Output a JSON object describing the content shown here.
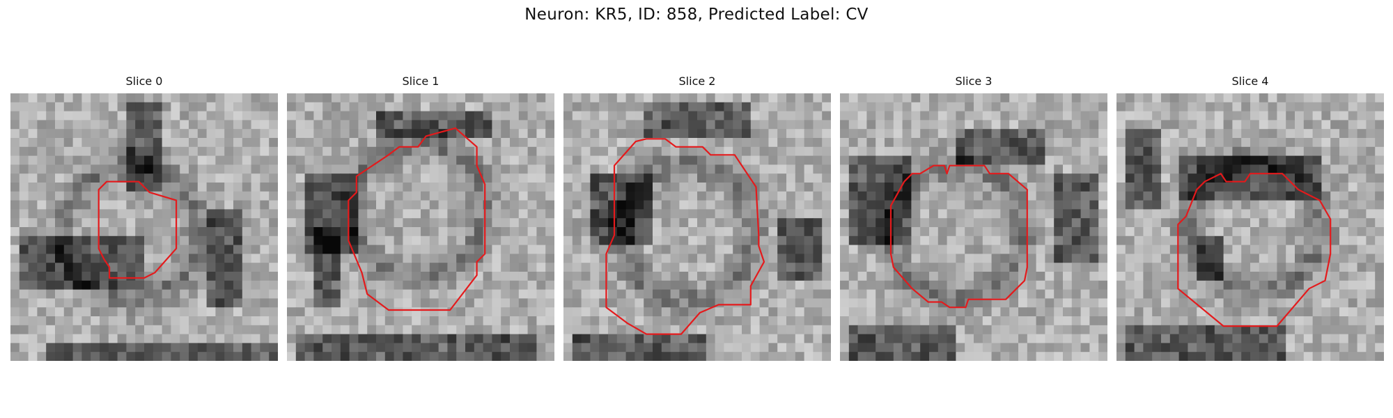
{
  "figure": {
    "title": "Neuron: KR5, ID: 858, Predicted Label: CV",
    "contour_color": "#e41a1c",
    "colormap": "gray",
    "slices": [
      {
        "label": "Slice 0",
        "seed": 101,
        "dark": [
          [
            0.05,
            0.55,
            0.45,
            0.18
          ],
          [
            0.45,
            0.05,
            0.12,
            0.3
          ],
          [
            0.15,
            0.92,
            0.85,
            0.08
          ],
          [
            0.75,
            0.45,
            0.12,
            0.35
          ]
        ],
        "contour": [
          [
            0.33,
            0.36
          ],
          [
            0.36,
            0.33
          ],
          [
            0.48,
            0.33
          ],
          [
            0.52,
            0.37
          ],
          [
            0.62,
            0.4
          ],
          [
            0.62,
            0.58
          ],
          [
            0.54,
            0.67
          ],
          [
            0.5,
            0.69
          ],
          [
            0.37,
            0.69
          ],
          [
            0.37,
            0.65
          ],
          [
            0.35,
            0.62
          ],
          [
            0.33,
            0.58
          ]
        ]
      },
      {
        "label": "Slice 1",
        "seed": 202,
        "dark": [
          [
            0.08,
            0.3,
            0.18,
            0.3
          ],
          [
            0.1,
            0.5,
            0.1,
            0.3
          ],
          [
            0.02,
            0.9,
            0.9,
            0.1
          ],
          [
            0.35,
            0.08,
            0.4,
            0.1
          ]
        ],
        "contour": [
          [
            0.38,
            0.23
          ],
          [
            0.42,
            0.2
          ],
          [
            0.49,
            0.2
          ],
          [
            0.52,
            0.16
          ],
          [
            0.63,
            0.13
          ],
          [
            0.71,
            0.2
          ],
          [
            0.71,
            0.27
          ],
          [
            0.74,
            0.34
          ],
          [
            0.74,
            0.6
          ],
          [
            0.71,
            0.63
          ],
          [
            0.71,
            0.68
          ],
          [
            0.61,
            0.81
          ],
          [
            0.38,
            0.81
          ],
          [
            0.3,
            0.75
          ],
          [
            0.28,
            0.67
          ],
          [
            0.23,
            0.55
          ],
          [
            0.23,
            0.4
          ],
          [
            0.26,
            0.37
          ],
          [
            0.26,
            0.31
          ]
        ]
      },
      {
        "label": "Slice 2",
        "seed": 303,
        "dark": [
          [
            0.1,
            0.3,
            0.22,
            0.25
          ],
          [
            0.8,
            0.48,
            0.18,
            0.22
          ],
          [
            0.02,
            0.9,
            0.5,
            0.1
          ],
          [
            0.3,
            0.05,
            0.4,
            0.1
          ]
        ],
        "contour": [
          [
            0.19,
            0.27
          ],
          [
            0.27,
            0.18
          ],
          [
            0.31,
            0.17
          ],
          [
            0.38,
            0.17
          ],
          [
            0.42,
            0.2
          ],
          [
            0.52,
            0.2
          ],
          [
            0.55,
            0.23
          ],
          [
            0.64,
            0.23
          ],
          [
            0.72,
            0.35
          ],
          [
            0.73,
            0.53
          ],
          [
            0.73,
            0.57
          ],
          [
            0.75,
            0.63
          ],
          [
            0.7,
            0.72
          ],
          [
            0.7,
            0.79
          ],
          [
            0.58,
            0.79
          ],
          [
            0.51,
            0.82
          ],
          [
            0.44,
            0.9
          ],
          [
            0.31,
            0.9
          ],
          [
            0.24,
            0.86
          ],
          [
            0.16,
            0.8
          ],
          [
            0.16,
            0.6
          ],
          [
            0.19,
            0.53
          ]
        ]
      },
      {
        "label": "Slice 3",
        "seed": 404,
        "dark": [
          [
            0.05,
            0.25,
            0.22,
            0.3
          ],
          [
            0.02,
            0.88,
            0.4,
            0.12
          ],
          [
            0.42,
            0.15,
            0.35,
            0.12
          ],
          [
            0.8,
            0.3,
            0.15,
            0.35
          ]
        ],
        "contour": [
          [
            0.24,
            0.33
          ],
          [
            0.27,
            0.3
          ],
          [
            0.3,
            0.3
          ],
          [
            0.35,
            0.27
          ],
          [
            0.39,
            0.27
          ],
          [
            0.4,
            0.3
          ],
          [
            0.41,
            0.27
          ],
          [
            0.54,
            0.27
          ],
          [
            0.56,
            0.3
          ],
          [
            0.63,
            0.3
          ],
          [
            0.7,
            0.36
          ],
          [
            0.7,
            0.65
          ],
          [
            0.69,
            0.7
          ],
          [
            0.66,
            0.73
          ],
          [
            0.62,
            0.77
          ],
          [
            0.48,
            0.77
          ],
          [
            0.47,
            0.8
          ],
          [
            0.41,
            0.8
          ],
          [
            0.38,
            0.78
          ],
          [
            0.33,
            0.78
          ],
          [
            0.27,
            0.73
          ],
          [
            0.2,
            0.65
          ],
          [
            0.19,
            0.6
          ],
          [
            0.19,
            0.42
          ]
        ]
      },
      {
        "label": "Slice 4",
        "seed": 505,
        "dark": [
          [
            0.03,
            0.15,
            0.12,
            0.3
          ],
          [
            0.02,
            0.88,
            0.6,
            0.12
          ],
          [
            0.25,
            0.25,
            0.5,
            0.15
          ],
          [
            0.3,
            0.55,
            0.1,
            0.15
          ]
        ],
        "contour": [
          [
            0.3,
            0.36
          ],
          [
            0.33,
            0.33
          ],
          [
            0.39,
            0.3
          ],
          [
            0.41,
            0.33
          ],
          [
            0.48,
            0.33
          ],
          [
            0.5,
            0.3
          ],
          [
            0.62,
            0.3
          ],
          [
            0.68,
            0.36
          ],
          [
            0.76,
            0.4
          ],
          [
            0.8,
            0.47
          ],
          [
            0.8,
            0.6
          ],
          [
            0.78,
            0.7
          ],
          [
            0.72,
            0.73
          ],
          [
            0.6,
            0.87
          ],
          [
            0.4,
            0.87
          ],
          [
            0.23,
            0.73
          ],
          [
            0.23,
            0.49
          ],
          [
            0.26,
            0.46
          ]
        ]
      }
    ]
  }
}
